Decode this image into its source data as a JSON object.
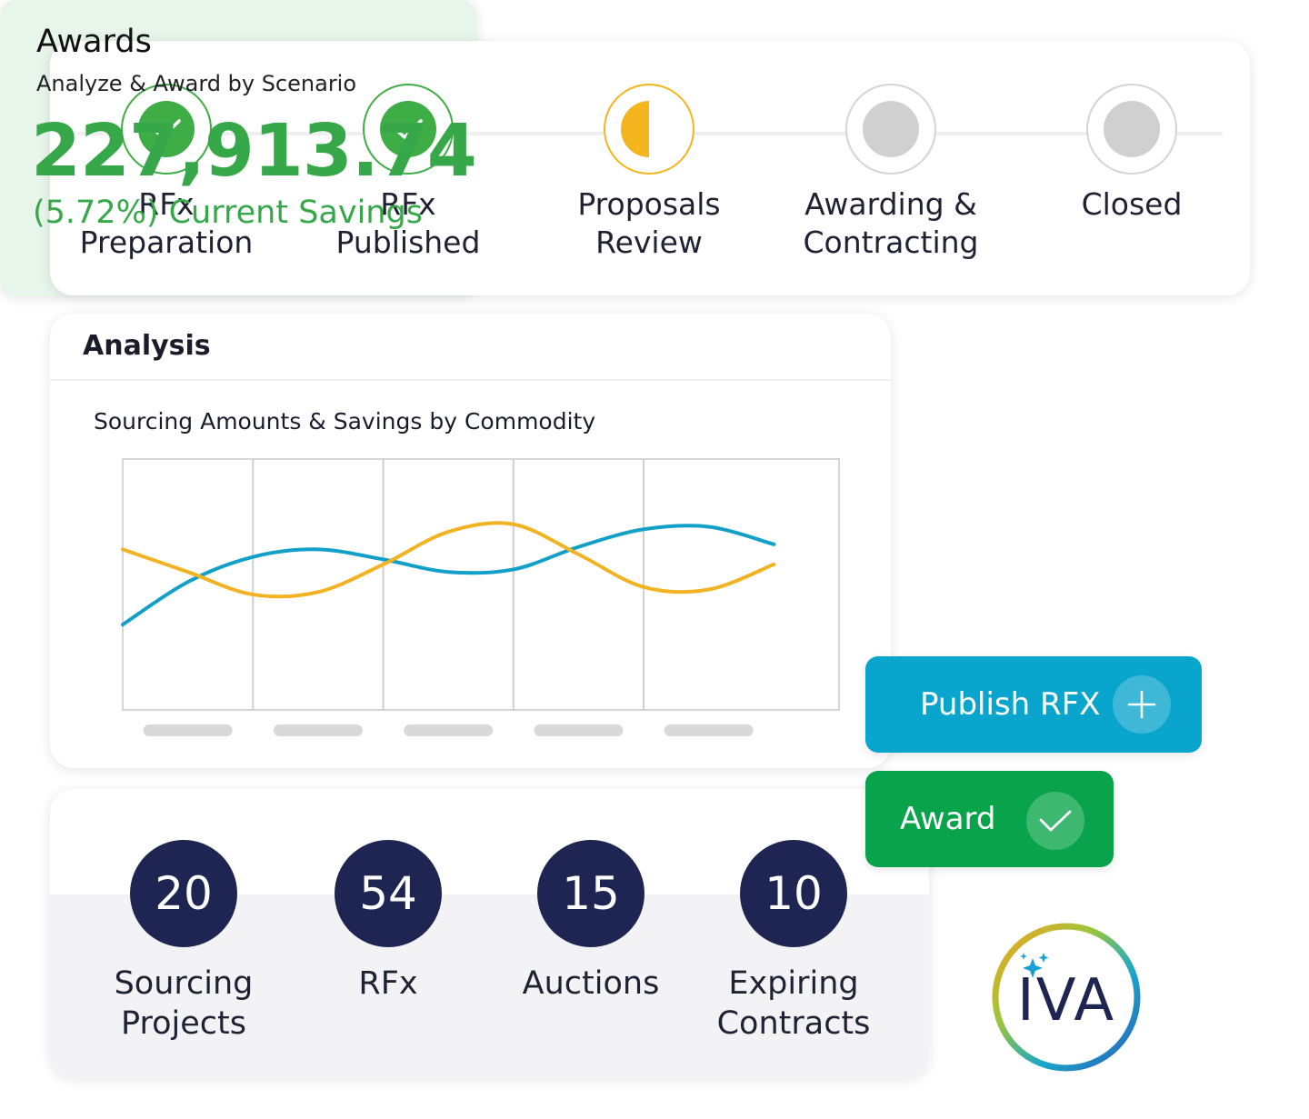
{
  "stepper": {
    "steps": [
      {
        "label": "RFx\nPreparation",
        "status": "complete"
      },
      {
        "label": "RFx\nPublished",
        "status": "complete"
      },
      {
        "label": "Proposals\nReview",
        "status": "in-progress"
      },
      {
        "label": "Awarding &\nContracting",
        "status": "pending"
      },
      {
        "label": "Closed",
        "status": "pending"
      }
    ],
    "colors": {
      "complete": "#3fad46",
      "in_progress": "#f4b51e",
      "pending": "#d0d0d0"
    }
  },
  "analysis": {
    "title": "Analysis",
    "chart_title": "Sourcing Amounts & Savings by Commodity"
  },
  "chart_data": {
    "type": "line",
    "categories": [
      "",
      "",
      "",
      "",
      ""
    ],
    "x": [
      0,
      0.5,
      1,
      1.5,
      2,
      2.5,
      3,
      3.5,
      4,
      4.5,
      5
    ],
    "series": [
      {
        "color": "#12a0c8",
        "values": [
          3.4,
          5.1,
          6.1,
          6.4,
          6.0,
          5.5,
          5.6,
          6.5,
          7.2,
          7.3,
          6.6
        ]
      },
      {
        "color": "#f2b323",
        "values": [
          6.4,
          5.5,
          4.6,
          4.7,
          5.8,
          7.1,
          7.4,
          6.2,
          4.9,
          4.8,
          5.8
        ]
      }
    ],
    "xlim": [
      0,
      5.5
    ],
    "ylim": [
      0,
      10
    ],
    "grid": "vertical",
    "legend": "none"
  },
  "awards": {
    "title": "Awards",
    "subtitle": "Analyze & Award by Scenario",
    "amount": "227,913.74",
    "savings": "(5.72%) Current Savings",
    "accent": "#37a84a"
  },
  "buttons": {
    "publish": {
      "label": "Publish RFX",
      "icon": "plus-icon",
      "color": "#0aa5cd"
    },
    "award": {
      "label": "Award",
      "icon": "check-icon",
      "color": "#08a34a"
    }
  },
  "stats": [
    {
      "value": "20",
      "label": "Sourcing\nProjects"
    },
    {
      "value": "54",
      "label": "RFx"
    },
    {
      "value": "15",
      "label": "Auctions"
    },
    {
      "value": "10",
      "label": "Expiring\nContracts"
    }
  ],
  "logo": {
    "text": "IVA",
    "icon": "sparkle-icon"
  }
}
